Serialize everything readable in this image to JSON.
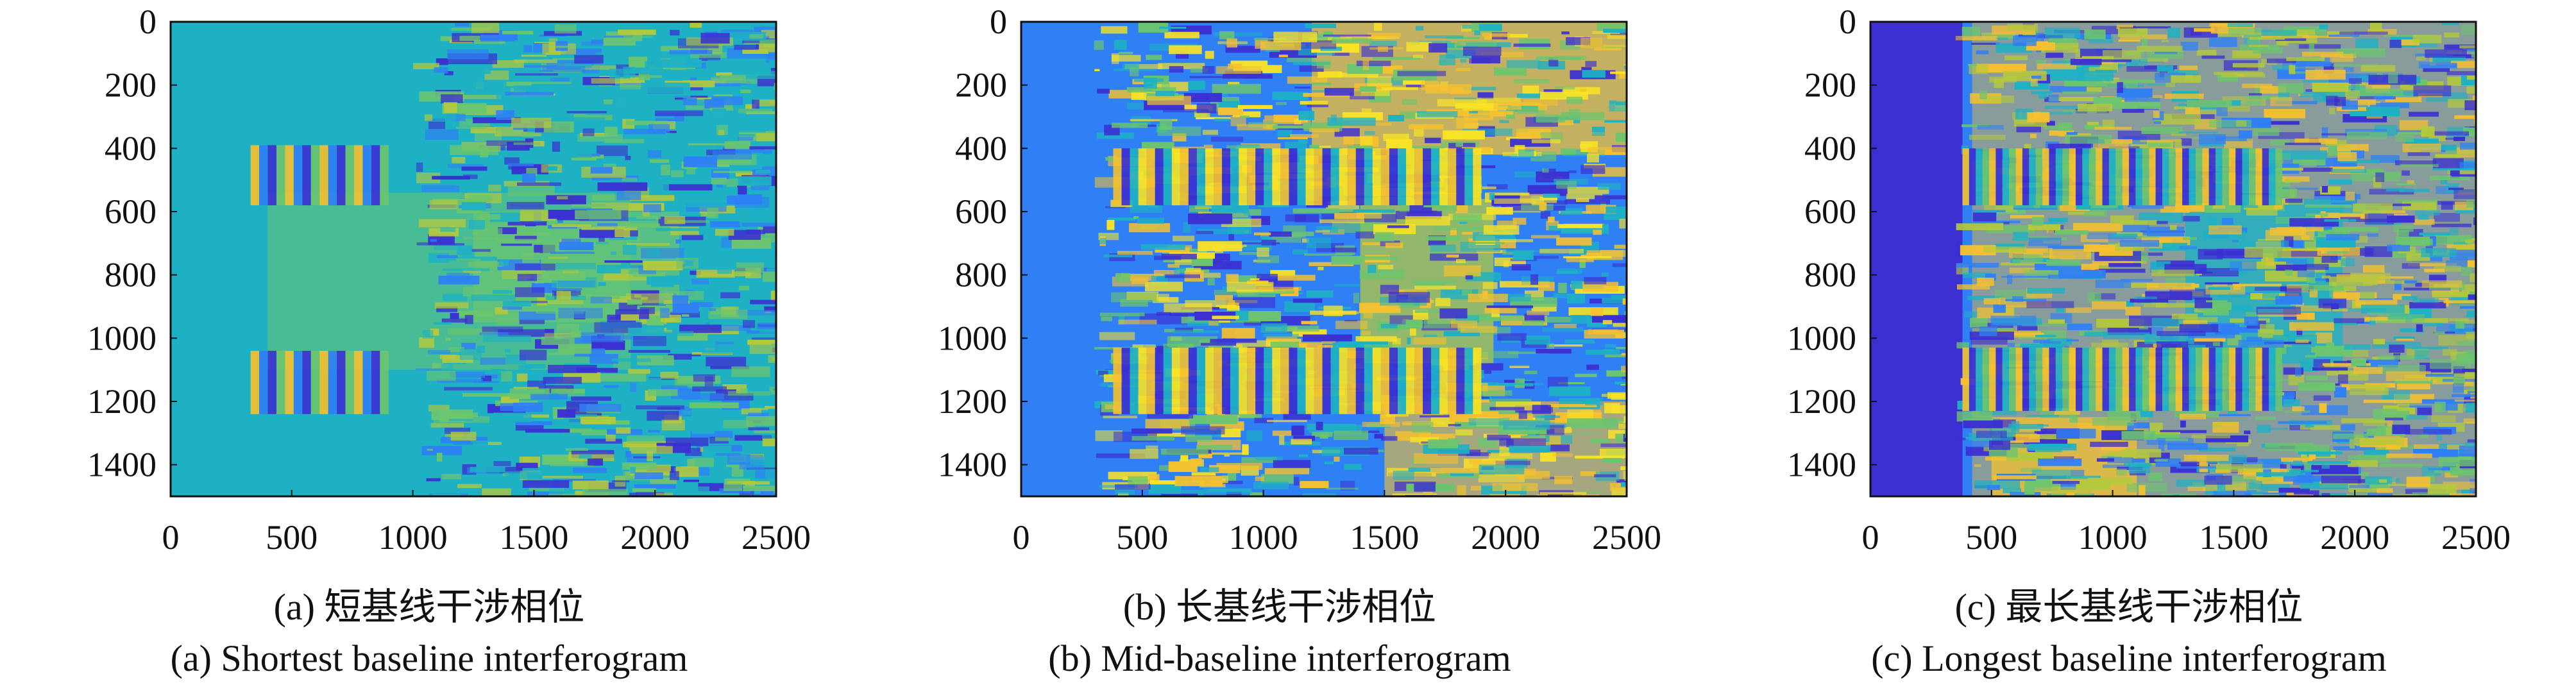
{
  "colors": {
    "dark_blue": "#3b2fd1",
    "blue": "#2f7ff5",
    "teal": "#1eb1c4",
    "green": "#6cc56e",
    "yellow_green": "#b5c93c",
    "yellow": "#f6c12f",
    "bright_yellow": "#f9e325"
  },
  "figure": {
    "panels": [
      {
        "caption_cn": "(a) 短基线干涉相位",
        "caption_en": "(a) Shortest baseline interferogram",
        "base_color": "teal"
      },
      {
        "caption_cn": "(b) 长基线干涉相位",
        "caption_en": "(b) Mid-baseline interferogram",
        "base_color": "blue"
      },
      {
        "caption_cn": "(c) 最长基线干涉相位",
        "caption_en": "(c) Longest baseline interferogram",
        "base_color": "blue"
      }
    ]
  },
  "chart_data": [
    {
      "type": "heatmap",
      "title": "",
      "x_ticks": [
        "0",
        "500",
        "1000",
        "1500",
        "2000",
        "2500"
      ],
      "y_ticks": [
        "0",
        "200",
        "400",
        "600",
        "800",
        "1000",
        "1200",
        "1400"
      ],
      "xlim": [
        0,
        2500
      ],
      "ylim": [
        1500,
        0
      ],
      "grid": false
    },
    {
      "type": "heatmap",
      "title": "",
      "x_ticks": [
        "0",
        "500",
        "1000",
        "1500",
        "2000",
        "2500"
      ],
      "y_ticks": [
        "0",
        "200",
        "400",
        "600",
        "800",
        "1000",
        "1200",
        "1400"
      ],
      "xlim": [
        0,
        2500
      ],
      "ylim": [
        1500,
        0
      ],
      "grid": false
    },
    {
      "type": "heatmap",
      "title": "",
      "x_ticks": [
        "0",
        "500",
        "1000",
        "1500",
        "2000",
        "2500"
      ],
      "y_ticks": [
        "0",
        "200",
        "400",
        "600",
        "800",
        "1000",
        "1200",
        "1400"
      ],
      "xlim": [
        0,
        2500
      ],
      "ylim": [
        1500,
        0
      ],
      "grid": false
    }
  ]
}
